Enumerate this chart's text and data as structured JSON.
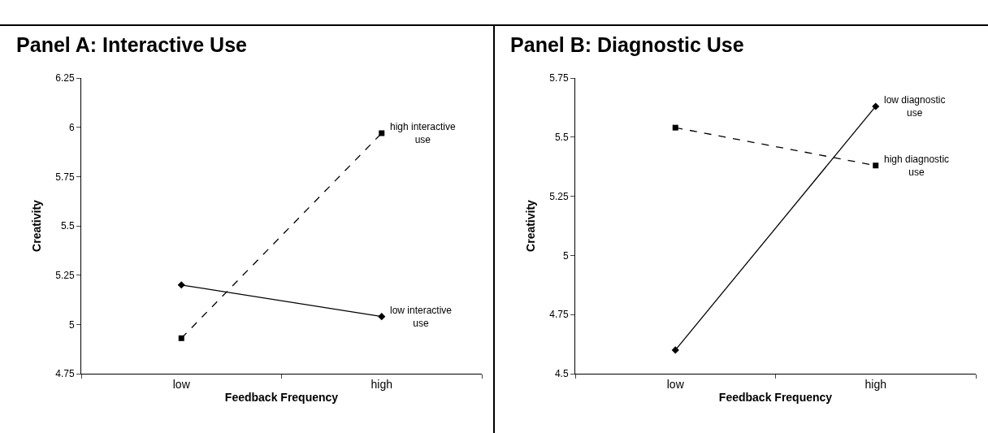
{
  "chart_data": [
    {
      "type": "line",
      "title": "Panel A: Interactive Use",
      "xlabel": "Feedback Frequency",
      "ylabel": "Creativity",
      "categories": [
        "low",
        "high"
      ],
      "ylim": [
        4.75,
        6.25
      ],
      "yticks": [
        4.75,
        5,
        5.25,
        5.5,
        5.75,
        6,
        6.25
      ],
      "grid": false,
      "legend": false,
      "series": [
        {
          "name": "high interactive use",
          "color": "#000000",
          "values": [
            4.93,
            5.97
          ],
          "marker": "square",
          "line_style": "dashed"
        },
        {
          "name": "low interactive use",
          "color": "#000000",
          "values": [
            5.2,
            5.04
          ],
          "marker": "diamond",
          "line_style": "solid"
        }
      ]
    },
    {
      "type": "line",
      "title": "Panel B: Diagnostic Use",
      "xlabel": "Feedback Frequency",
      "ylabel": "Creativity",
      "categories": [
        "low",
        "high"
      ],
      "ylim": [
        4.5,
        5.75
      ],
      "yticks": [
        4.5,
        4.75,
        5,
        5.25,
        5.5,
        5.75
      ],
      "grid": false,
      "legend": false,
      "series": [
        {
          "name": "low diagnostic use",
          "color": "#000000",
          "values": [
            4.6,
            5.63
          ],
          "marker": "diamond",
          "line_style": "solid"
        },
        {
          "name": "high diagnostic use",
          "color": "#000000",
          "values": [
            5.54,
            5.38
          ],
          "marker": "square",
          "line_style": "dashed"
        }
      ]
    }
  ]
}
